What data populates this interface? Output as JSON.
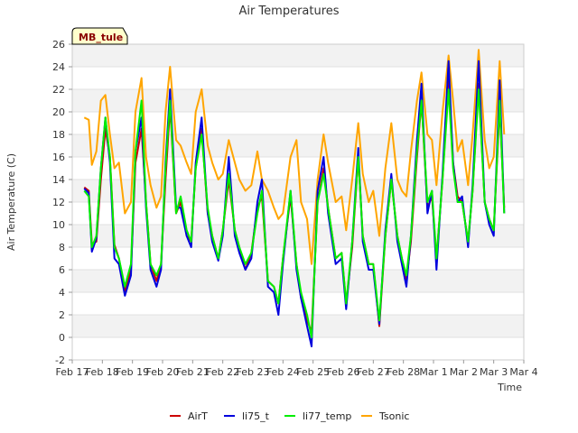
{
  "chart_data": {
    "type": "line",
    "title": "Air Temperatures",
    "xlabel": "Time",
    "ylabel": "Air Temperature (C)",
    "badge": "MB_tule",
    "ylim": [
      -2,
      26
    ],
    "yticks": [
      -2,
      0,
      2,
      4,
      6,
      8,
      10,
      12,
      14,
      16,
      18,
      20,
      22,
      24,
      26
    ],
    "xlim": [
      0,
      15
    ],
    "xticks": [
      {
        "pos": 0,
        "label": "Feb 17"
      },
      {
        "pos": 1,
        "label": "Feb 18"
      },
      {
        "pos": 2,
        "label": "Feb 19"
      },
      {
        "pos": 3,
        "label": "Feb 20"
      },
      {
        "pos": 4,
        "label": "Feb 21"
      },
      {
        "pos": 5,
        "label": "Feb 22"
      },
      {
        "pos": 6,
        "label": "Feb 23"
      },
      {
        "pos": 7,
        "label": "Feb 24"
      },
      {
        "pos": 8,
        "label": "Feb 25"
      },
      {
        "pos": 9,
        "label": "Feb 26"
      },
      {
        "pos": 10,
        "label": "Feb 27"
      },
      {
        "pos": 11,
        "label": "Feb 28"
      },
      {
        "pos": 12,
        "label": "Mar 1"
      },
      {
        "pos": 13,
        "label": "Mar 2"
      },
      {
        "pos": 14,
        "label": "Mar 3"
      },
      {
        "pos": 15,
        "label": "Mar 4"
      }
    ],
    "grid": "horizontal-bands",
    "legend_position": "bottom",
    "series": [
      {
        "name": "AirT",
        "color": "#cc0000",
        "x": [
          0.4,
          0.55,
          0.65,
          0.8,
          0.95,
          1.1,
          1.25,
          1.4,
          1.55,
          1.75,
          1.95,
          2.1,
          2.3,
          2.45,
          2.6,
          2.8,
          2.95,
          3.1,
          3.25,
          3.45,
          3.6,
          3.8,
          3.95,
          4.1,
          4.3,
          4.5,
          4.65,
          4.85,
          5.0,
          5.2,
          5.4,
          5.55,
          5.75,
          5.95,
          6.15,
          6.3,
          6.5,
          6.7,
          6.85,
          7.0,
          7.25,
          7.45,
          7.6,
          7.8,
          7.95,
          8.15,
          8.35,
          8.5,
          8.75,
          8.95,
          9.1,
          9.3,
          9.5,
          9.65,
          9.85,
          10.0,
          10.2,
          10.4,
          10.6,
          10.8,
          10.95,
          11.1,
          11.25,
          11.45,
          11.6,
          11.8,
          11.95,
          12.1,
          12.3,
          12.5,
          12.65,
          12.8,
          12.95,
          13.15,
          13.3,
          13.5,
          13.7,
          13.85,
          14.0,
          14.2,
          14.35
        ],
        "y": [
          13.3,
          13.0,
          8.3,
          8.5,
          14.0,
          18.5,
          16.0,
          8.2,
          7.0,
          4.1,
          6.0,
          15.5,
          18.5,
          12.0,
          6.5,
          5.0,
          6.5,
          14.0,
          20.5,
          11.0,
          12.0,
          9.0,
          8.5,
          15.0,
          18.5,
          11.0,
          9.0,
          7.0,
          9.5,
          14.0,
          9.5,
          8.0,
          6.0,
          7.5,
          11.5,
          12.5,
          5.0,
          4.5,
          3.0,
          7.0,
          12.5,
          6.5,
          3.5,
          1.5,
          0.5,
          12.0,
          15.0,
          11.5,
          7.0,
          7.5,
          3.0,
          8.0,
          16.0,
          9.0,
          6.5,
          6.5,
          1.0,
          9.0,
          14.0,
          9.0,
          7.0,
          5.0,
          8.5,
          16.0,
          21.0,
          11.5,
          12.5,
          7.0,
          14.0,
          23.0,
          15.5,
          12.5,
          12.0,
          8.5,
          13.0,
          22.5,
          12.0,
          10.5,
          9.5,
          20.5,
          11.5
        ]
      },
      {
        "name": "li75_t",
        "color": "#0000dd",
        "x": [
          0.4,
          0.55,
          0.65,
          0.8,
          0.95,
          1.1,
          1.25,
          1.4,
          1.55,
          1.75,
          1.95,
          2.1,
          2.3,
          2.45,
          2.6,
          2.8,
          2.95,
          3.1,
          3.25,
          3.45,
          3.6,
          3.8,
          3.95,
          4.1,
          4.3,
          4.5,
          4.65,
          4.85,
          5.0,
          5.2,
          5.4,
          5.55,
          5.75,
          5.95,
          6.15,
          6.3,
          6.5,
          6.7,
          6.85,
          7.0,
          7.25,
          7.45,
          7.6,
          7.8,
          7.95,
          8.15,
          8.35,
          8.5,
          8.75,
          8.95,
          9.1,
          9.3,
          9.5,
          9.65,
          9.85,
          10.0,
          10.2,
          10.4,
          10.6,
          10.8,
          10.95,
          11.1,
          11.25,
          11.45,
          11.6,
          11.8,
          11.95,
          12.1,
          12.3,
          12.5,
          12.65,
          12.8,
          12.95,
          13.15,
          13.3,
          13.5,
          13.7,
          13.85,
          14.0,
          14.2,
          14.35
        ],
        "y": [
          13.2,
          12.8,
          7.6,
          8.8,
          15.0,
          19.5,
          15.5,
          7.0,
          6.5,
          3.7,
          5.5,
          16.5,
          19.5,
          11.5,
          6.0,
          4.5,
          6.0,
          15.5,
          22.0,
          11.5,
          11.5,
          9.0,
          8.0,
          15.5,
          19.5,
          11.0,
          8.5,
          6.8,
          9.0,
          16.0,
          9.0,
          7.5,
          6.0,
          7.0,
          12.0,
          14.0,
          4.5,
          4.0,
          2.0,
          6.5,
          13.0,
          6.0,
          3.5,
          1.0,
          -0.8,
          13.0,
          16.0,
          11.0,
          6.5,
          7.0,
          2.5,
          8.5,
          16.8,
          8.5,
          6.0,
          6.0,
          1.2,
          9.5,
          14.5,
          8.5,
          6.5,
          4.5,
          9.0,
          17.5,
          22.5,
          11.0,
          13.0,
          6.0,
          14.5,
          24.5,
          15.5,
          12.0,
          12.5,
          8.0,
          13.5,
          24.5,
          12.0,
          10.0,
          9.0,
          22.8,
          11.0
        ]
      },
      {
        "name": "li77_temp",
        "color": "#00ee00",
        "x": [
          0.4,
          0.55,
          0.65,
          0.8,
          0.95,
          1.1,
          1.25,
          1.4,
          1.55,
          1.75,
          1.95,
          2.1,
          2.3,
          2.45,
          2.6,
          2.8,
          2.95,
          3.1,
          3.25,
          3.45,
          3.6,
          3.8,
          3.95,
          4.1,
          4.3,
          4.5,
          4.65,
          4.85,
          5.0,
          5.2,
          5.4,
          5.55,
          5.75,
          5.95,
          6.15,
          6.3,
          6.5,
          6.7,
          6.85,
          7.0,
          7.25,
          7.45,
          7.6,
          7.8,
          7.95,
          8.15,
          8.35,
          8.5,
          8.75,
          8.95,
          9.1,
          9.3,
          9.5,
          9.65,
          9.85,
          10.0,
          10.2,
          10.4,
          10.6,
          10.8,
          10.95,
          11.1,
          11.25,
          11.45,
          11.6,
          11.8,
          11.95,
          12.1,
          12.3,
          12.5,
          12.65,
          12.8,
          12.95,
          13.15,
          13.3,
          13.5,
          13.7,
          13.85,
          14.0,
          14.2,
          14.35
        ],
        "y": [
          13.0,
          12.5,
          8.0,
          9.0,
          15.0,
          19.5,
          16.0,
          8.0,
          7.0,
          4.5,
          6.5,
          16.5,
          21.0,
          12.0,
          6.5,
          5.5,
          6.5,
          15.0,
          21.0,
          11.0,
          12.5,
          9.5,
          8.5,
          15.0,
          18.0,
          11.5,
          9.0,
          7.0,
          9.5,
          14.5,
          9.5,
          8.0,
          6.5,
          7.5,
          11.0,
          13.0,
          5.0,
          4.5,
          3.0,
          7.0,
          13.0,
          6.5,
          4.0,
          2.0,
          0.0,
          12.0,
          14.5,
          11.5,
          7.0,
          7.5,
          3.0,
          8.5,
          16.0,
          9.0,
          6.5,
          6.5,
          1.5,
          9.0,
          14.0,
          9.0,
          7.0,
          5.5,
          9.0,
          16.5,
          21.0,
          12.0,
          13.0,
          7.0,
          14.0,
          22.0,
          15.0,
          12.0,
          12.0,
          8.5,
          13.0,
          22.0,
          12.0,
          10.5,
          9.5,
          21.0,
          11.0
        ]
      },
      {
        "name": "Tsonic",
        "color": "#ffa500",
        "x": [
          0.4,
          0.55,
          0.65,
          0.8,
          0.95,
          1.1,
          1.25,
          1.4,
          1.55,
          1.75,
          1.95,
          2.1,
          2.3,
          2.45,
          2.6,
          2.8,
          2.95,
          3.1,
          3.25,
          3.45,
          3.6,
          3.8,
          3.95,
          4.1,
          4.3,
          4.5,
          4.65,
          4.85,
          5.0,
          5.2,
          5.4,
          5.55,
          5.75,
          5.95,
          6.15,
          6.3,
          6.5,
          6.7,
          6.85,
          7.0,
          7.25,
          7.45,
          7.6,
          7.8,
          7.95,
          8.15,
          8.35,
          8.5,
          8.75,
          8.95,
          9.1,
          9.3,
          9.5,
          9.65,
          9.85,
          10.0,
          10.2,
          10.4,
          10.6,
          10.8,
          10.95,
          11.1,
          11.25,
          11.45,
          11.6,
          11.8,
          11.95,
          12.1,
          12.3,
          12.5,
          12.65,
          12.8,
          12.95,
          13.15,
          13.3,
          13.5,
          13.7,
          13.85,
          14.0,
          14.2,
          14.35
        ],
        "y": [
          19.5,
          19.3,
          15.3,
          16.5,
          21.0,
          21.5,
          18.0,
          15.0,
          15.5,
          11.0,
          12.0,
          20.0,
          23.0,
          16.0,
          13.5,
          11.5,
          12.5,
          20.0,
          24.0,
          17.5,
          17.0,
          15.5,
          14.5,
          20.0,
          22.0,
          17.0,
          15.5,
          14.0,
          14.5,
          17.5,
          15.5,
          14.0,
          13.0,
          13.5,
          16.5,
          14.0,
          13.0,
          11.5,
          10.5,
          11.0,
          16.0,
          17.5,
          12.0,
          10.5,
          6.5,
          14.0,
          18.0,
          15.5,
          12.0,
          12.5,
          9.5,
          14.0,
          19.0,
          14.5,
          12.0,
          13.0,
          9.0,
          15.0,
          19.0,
          14.0,
          13.0,
          12.5,
          16.5,
          21.0,
          23.5,
          18.0,
          17.5,
          13.5,
          20.0,
          25.0,
          21.0,
          16.5,
          17.5,
          13.5,
          18.0,
          25.5,
          17.5,
          15.0,
          16.0,
          24.5,
          18.0
        ]
      }
    ]
  }
}
